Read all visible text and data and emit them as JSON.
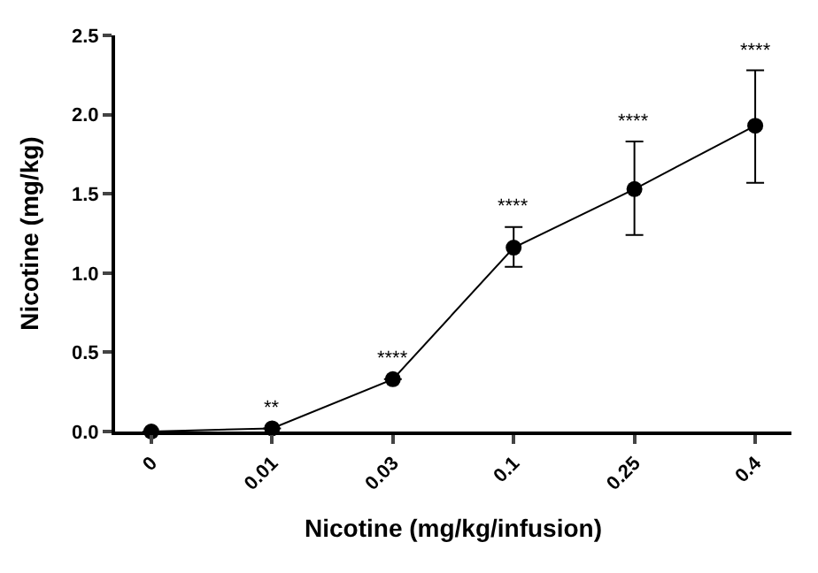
{
  "chart_data": {
    "type": "line",
    "xlabel": "Nicotine (mg/kg/infusion)",
    "ylabel": "Nicotine (mg/kg)",
    "categories": [
      "0",
      "0.01",
      "0.03",
      "0.1",
      "0.25",
      "0.4"
    ],
    "series": [
      {
        "color": "#000000",
        "values": [
          0,
          0.02,
          0.33,
          1.16,
          1.53,
          1.93
        ],
        "errors": [
          null,
          null,
          null,
          [
            1.04,
            1.29
          ],
          [
            1.24,
            1.83
          ],
          [
            1.57,
            2.28
          ]
        ]
      }
    ],
    "ylim": [
      0,
      2.5
    ],
    "yticks": [
      {
        "value": 0,
        "label": "0.0"
      },
      {
        "value": 0.5,
        "label": "0.5"
      },
      {
        "value": 1,
        "label": "1.0"
      },
      {
        "value": 1.5,
        "label": "1.5"
      },
      {
        "value": 2,
        "label": "2.0"
      },
      {
        "value": 2.5,
        "label": "2.5"
      }
    ],
    "annotations": [
      {
        "text": "**",
        "x": "0.01",
        "y": 0.02
      },
      {
        "text": "****",
        "x": "0.03",
        "y": 0.33
      },
      {
        "text": "****",
        "x": "0.1",
        "y": 1.29
      },
      {
        "text": "****",
        "x": "0.25",
        "y": 1.83
      },
      {
        "text": "****",
        "x": "0.4",
        "y": 2.28
      }
    ],
    "marker": "circle",
    "line_style": "solid"
  }
}
